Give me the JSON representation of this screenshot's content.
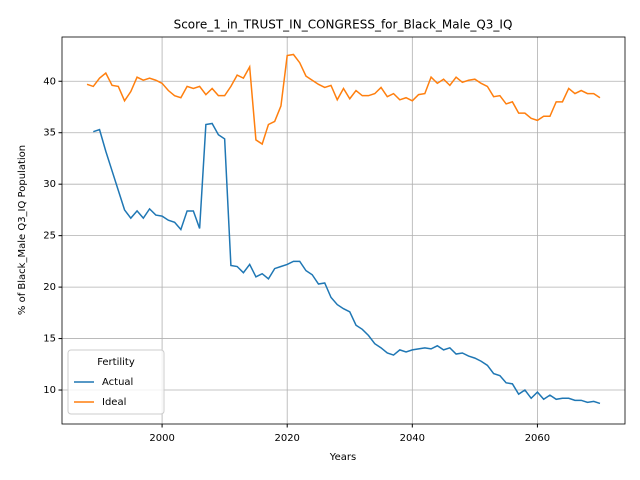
{
  "chart_data": {
    "type": "line",
    "title": "Score_1_in_TRUST_IN_CONGRESS_for_Black_Male_Q3_IQ",
    "xlabel": "Years",
    "ylabel": "% of Black_Male Q3_IQ Population",
    "x": [
      1988,
      1989,
      1990,
      1991,
      1992,
      1993,
      1994,
      1995,
      1996,
      1997,
      1998,
      1999,
      2000,
      2001,
      2002,
      2003,
      2004,
      2005,
      2006,
      2007,
      2008,
      2009,
      2010,
      2011,
      2012,
      2013,
      2014,
      2015,
      2016,
      2017,
      2018,
      2019,
      2020,
      2021,
      2022,
      2023,
      2024,
      2025,
      2026,
      2027,
      2028,
      2029,
      2030,
      2031,
      2032,
      2033,
      2034,
      2035,
      2036,
      2037,
      2038,
      2039,
      2040,
      2041,
      2042,
      2043,
      2044,
      2045,
      2046,
      2047,
      2048,
      2049,
      2050,
      2051,
      2052,
      2053,
      2054,
      2055,
      2056,
      2057,
      2058,
      2059,
      2060,
      2061,
      2062,
      2063,
      2064,
      2065,
      2066,
      2067,
      2068,
      2069,
      2070
    ],
    "series": [
      {
        "name": "Actual",
        "color": "#1f77b4",
        "values": [
          null,
          35.1,
          35.3,
          33.2,
          31.3,
          29.4,
          27.5,
          26.7,
          27.4,
          26.7,
          27.6,
          27.0,
          26.9,
          26.5,
          26.3,
          25.6,
          27.4,
          27.4,
          25.7,
          35.8,
          35.9,
          34.8,
          34.4,
          22.1,
          22.0,
          21.4,
          22.2,
          21.0,
          21.3,
          20.8,
          21.8,
          22.0,
          22.2,
          22.5,
          22.5,
          21.6,
          21.2,
          20.3,
          20.4,
          19.0,
          18.3,
          17.9,
          17.6,
          16.3,
          15.9,
          15.3,
          14.5,
          14.1,
          13.6,
          13.4,
          13.9,
          13.7,
          13.9,
          14.0,
          14.1,
          14.0,
          14.3,
          13.9,
          14.1,
          13.5,
          13.6,
          13.3,
          13.1,
          12.8,
          12.4,
          11.6,
          11.4,
          10.7,
          10.6,
          9.6,
          10.0,
          9.2,
          9.8,
          9.1,
          9.5,
          9.1,
          9.2,
          9.2,
          9.0,
          9.0,
          8.8,
          8.9,
          8.7
        ]
      },
      {
        "name": "Ideal",
        "color": "#ff7f0e",
        "values": [
          39.7,
          39.5,
          40.3,
          40.8,
          39.6,
          39.5,
          38.1,
          39.0,
          40.4,
          40.1,
          40.3,
          40.1,
          39.8,
          39.1,
          38.6,
          38.4,
          39.5,
          39.3,
          39.5,
          38.7,
          39.3,
          38.6,
          38.6,
          39.5,
          40.6,
          40.3,
          41.4,
          34.3,
          33.9,
          35.8,
          36.1,
          37.6,
          42.5,
          42.6,
          41.8,
          40.5,
          40.1,
          39.7,
          39.4,
          39.6,
          38.2,
          39.3,
          38.3,
          39.1,
          38.6,
          38.6,
          38.8,
          39.4,
          38.5,
          38.8,
          38.2,
          38.4,
          38.1,
          38.7,
          38.8,
          40.4,
          39.8,
          40.2,
          39.6,
          40.4,
          39.9,
          40.1,
          40.2,
          39.8,
          39.5,
          38.5,
          38.6,
          37.8,
          38.0,
          36.9,
          36.9,
          36.4,
          36.2,
          36.6,
          36.6,
          38.0,
          38.0,
          39.3,
          38.8,
          39.1,
          38.8,
          38.8,
          38.4
        ]
      }
    ],
    "xlim": [
      1984,
      2074
    ],
    "xticks": [
      2000,
      2020,
      2040,
      2060
    ],
    "ylim": [
      6.7,
      44.3
    ],
    "yticks": [
      10,
      15,
      20,
      25,
      30,
      35,
      40
    ],
    "grid": true,
    "legend": "lower left",
    "legend_title": "Fertility"
  }
}
